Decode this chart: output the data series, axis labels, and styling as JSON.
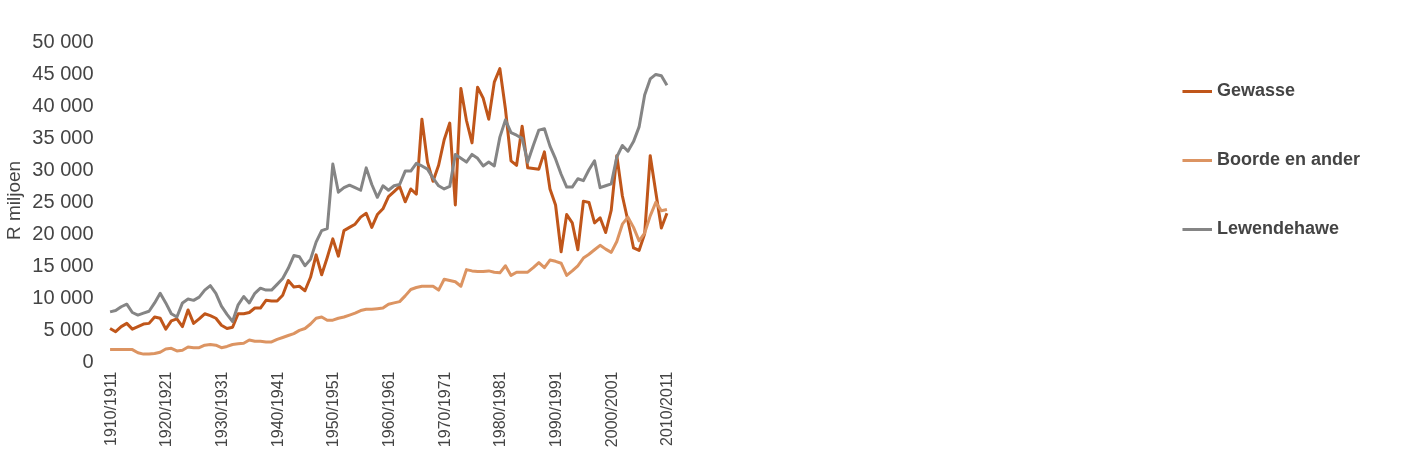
{
  "chart_data": {
    "type": "line",
    "ylabel": "R miljoen",
    "legend": "right",
    "line_style": "solid",
    "categories": [
      "1910/1911",
      null,
      null,
      null,
      null,
      null,
      null,
      null,
      null,
      null,
      "1920/1921",
      null,
      null,
      null,
      null,
      null,
      null,
      null,
      null,
      null,
      "1930/1931",
      null,
      null,
      null,
      null,
      null,
      null,
      null,
      null,
      null,
      "1940/1941",
      null,
      null,
      null,
      null,
      null,
      null,
      null,
      null,
      null,
      "1950/1951",
      null,
      null,
      null,
      null,
      null,
      null,
      null,
      null,
      null,
      "1960/1961",
      null,
      null,
      null,
      null,
      null,
      null,
      null,
      null,
      null,
      "1970/1971",
      null,
      null,
      null,
      null,
      null,
      null,
      null,
      null,
      null,
      "1980/1981",
      null,
      null,
      null,
      null,
      null,
      null,
      null,
      null,
      null,
      "1990/1991",
      null,
      null,
      null,
      null,
      null,
      null,
      null,
      null,
      null,
      "2000/2001",
      null,
      null,
      null,
      null,
      null,
      null,
      null,
      null,
      null,
      "2010/2011"
    ],
    "ylim": [
      0,
      50000
    ],
    "yticks": [
      {
        "value": 0,
        "label": "0"
      },
      {
        "value": 5000,
        "label": "5 000"
      },
      {
        "value": 10000,
        "label": "10 000"
      },
      {
        "value": 15000,
        "label": "15 000"
      },
      {
        "value": 20000,
        "label": "20 000"
      },
      {
        "value": 25000,
        "label": "25 000"
      },
      {
        "value": 30000,
        "label": "30 000"
      },
      {
        "value": 35000,
        "label": "35 000"
      },
      {
        "value": 40000,
        "label": "40 000"
      },
      {
        "value": 45000,
        "label": "45 000"
      },
      {
        "value": 50000,
        "label": "50 000"
      }
    ],
    "series": [
      {
        "name": "Gewasse",
        "color": "#c0561a",
        "values": [
          5000,
          4500,
          5300,
          5800,
          4900,
          5300,
          5700,
          5800,
          6800,
          6600,
          4900,
          6200,
          6500,
          5300,
          7900,
          5800,
          6500,
          7300,
          7000,
          6600,
          5500,
          5000,
          5200,
          7300,
          7300,
          7500,
          8200,
          8200,
          9400,
          9300,
          9300,
          10200,
          12500,
          11500,
          11600,
          10900,
          13000,
          16500,
          13400,
          16100,
          19000,
          16300,
          20300,
          20800,
          21300,
          22400,
          23000,
          20800,
          22800,
          23700,
          25600,
          26400,
          27200,
          24800,
          26800,
          26000,
          37700,
          31000,
          28000,
          30500,
          34500,
          37100,
          24300,
          42500,
          37500,
          34000,
          42700,
          41000,
          37700,
          43500,
          45600,
          39300,
          31200,
          30500,
          36600,
          30100,
          30000,
          29900,
          32600,
          26800,
          24300,
          17000,
          22800,
          21500,
          17300,
          24900,
          24700,
          21500,
          22300,
          20000,
          23500,
          32000,
          25700,
          21800,
          17600,
          17200,
          19800,
          32000,
          26300,
          20700,
          23000
        ]
      },
      {
        "name": "Boorde en ander",
        "color": "#dc9462",
        "values": [
          1700,
          1700,
          1700,
          1700,
          1700,
          1200,
          1000,
          1000,
          1100,
          1300,
          1800,
          1900,
          1500,
          1600,
          2100,
          2000,
          2000,
          2400,
          2500,
          2400,
          2000,
          2200,
          2500,
          2600,
          2700,
          3200,
          3000,
          3000,
          2900,
          2900,
          3300,
          3600,
          3900,
          4200,
          4700,
          5000,
          5700,
          6600,
          6800,
          6300,
          6300,
          6600,
          6800,
          7100,
          7400,
          7800,
          8000,
          8000,
          8100,
          8200,
          8800,
          9000,
          9200,
          10100,
          11100,
          11400,
          11600,
          11600,
          11600,
          11000,
          12700,
          12500,
          12300,
          11600,
          14200,
          14000,
          13900,
          13900,
          14000,
          13800,
          13700,
          14800,
          13300,
          13800,
          13800,
          13800,
          14500,
          15300,
          14500,
          15700,
          15500,
          15200,
          13300,
          14000,
          14800,
          16000,
          16600,
          17300,
          18000,
          17400,
          16900,
          18600,
          21300,
          22400,
          20800,
          18700,
          19900,
          22600,
          24700,
          23400,
          23600
        ]
      },
      {
        "name": "Lewendehawe",
        "color": "#858585",
        "values": [
          7600,
          7800,
          8400,
          8800,
          7500,
          7100,
          7400,
          7700,
          9000,
          10500,
          9000,
          7300,
          6800,
          9000,
          9600,
          9400,
          9900,
          11000,
          11700,
          10500,
          8500,
          7200,
          6100,
          8700,
          10000,
          9000,
          10500,
          11300,
          11000,
          11000,
          11900,
          12800,
          14400,
          16400,
          16200,
          14800,
          15800,
          18500,
          20300,
          20600,
          30700,
          26300,
          27000,
          27400,
          27000,
          26600,
          30100,
          27500,
          25500,
          27300,
          26600,
          27300,
          27500,
          29600,
          29600,
          30800,
          30400,
          29900,
          28500,
          27300,
          26800,
          27200,
          32200,
          31600,
          31000,
          32200,
          31600,
          30400,
          31000,
          30400,
          34900,
          37600,
          35600,
          35200,
          34700,
          31000,
          33600,
          36000,
          36200,
          33500,
          31500,
          29100,
          27100,
          27100,
          28400,
          28100,
          29800,
          31200,
          27000,
          27300,
          27600,
          31800,
          33600,
          32700,
          34200,
          36500,
          41500,
          44000,
          44700,
          44500,
          43000
        ]
      }
    ]
  }
}
